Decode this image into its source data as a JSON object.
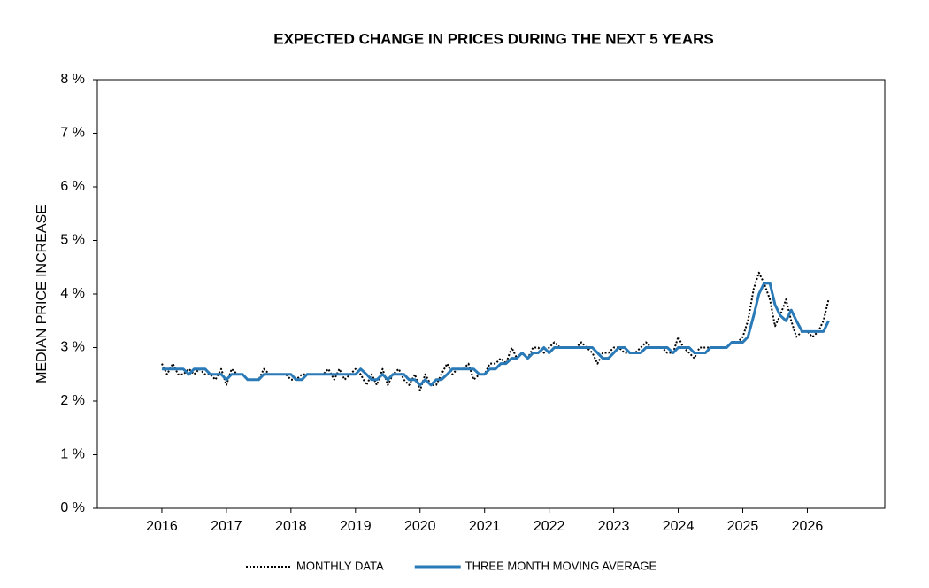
{
  "chart_data": {
    "type": "line",
    "title": "EXPECTED CHANGE IN PRICES DURING THE NEXT 5 YEARS",
    "y_label": "MEDIAN PRICE INCREASE",
    "x": [
      2016.0,
      2016.08,
      2016.17,
      2016.25,
      2016.33,
      2016.42,
      2016.5,
      2016.58,
      2016.67,
      2016.75,
      2016.83,
      2016.92,
      2017.0,
      2017.08,
      2017.17,
      2017.25,
      2017.33,
      2017.42,
      2017.5,
      2017.58,
      2017.67,
      2017.75,
      2017.83,
      2017.92,
      2018.0,
      2018.08,
      2018.17,
      2018.25,
      2018.33,
      2018.42,
      2018.5,
      2018.58,
      2018.67,
      2018.75,
      2018.83,
      2018.92,
      2019.0,
      2019.08,
      2019.17,
      2019.25,
      2019.33,
      2019.42,
      2019.5,
      2019.58,
      2019.67,
      2019.75,
      2019.83,
      2019.92,
      2020.0,
      2020.08,
      2020.17,
      2020.25,
      2020.33,
      2020.42,
      2020.5,
      2020.58,
      2020.67,
      2020.75,
      2020.83,
      2020.92,
      2021.0,
      2021.08,
      2021.17,
      2021.25,
      2021.33,
      2021.42,
      2021.5,
      2021.58,
      2021.67,
      2021.75,
      2021.83,
      2021.92,
      2022.0,
      2022.08,
      2022.17,
      2022.25,
      2022.33,
      2022.42,
      2022.5,
      2022.58,
      2022.67,
      2022.75,
      2022.83,
      2022.92,
      2023.0,
      2023.08,
      2023.17,
      2023.25,
      2023.33,
      2023.42,
      2023.5,
      2023.58,
      2023.67,
      2023.75,
      2023.83,
      2023.92,
      2024.0,
      2024.08,
      2024.17,
      2024.25,
      2024.33,
      2024.42,
      2024.5,
      2024.58,
      2024.67,
      2024.75,
      2024.83,
      2024.92,
      2025.0,
      2025.08,
      2025.17,
      2025.25,
      2025.33,
      2025.42,
      2025.5,
      2025.58,
      2025.67,
      2025.75,
      2025.83,
      2025.92,
      2026.0,
      2026.08,
      2026.17,
      2026.25,
      2026.33
    ],
    "series": [
      {
        "name": "MONTHLY DATA",
        "color": "#000000",
        "line_style": "dotted",
        "values": [
          2.7,
          2.5,
          2.7,
          2.5,
          2.5,
          2.6,
          2.5,
          2.6,
          2.5,
          2.5,
          2.4,
          2.6,
          2.3,
          2.6,
          2.5,
          2.5,
          2.4,
          2.4,
          2.4,
          2.6,
          2.5,
          2.5,
          2.5,
          2.5,
          2.4,
          2.4,
          2.5,
          2.5,
          2.5,
          2.5,
          2.5,
          2.6,
          2.4,
          2.6,
          2.4,
          2.5,
          2.6,
          2.5,
          2.3,
          2.5,
          2.3,
          2.6,
          2.3,
          2.5,
          2.6,
          2.4,
          2.3,
          2.5,
          2.2,
          2.5,
          2.3,
          2.3,
          2.5,
          2.7,
          2.5,
          2.6,
          2.6,
          2.7,
          2.4,
          2.5,
          2.5,
          2.7,
          2.7,
          2.8,
          2.7,
          3.0,
          2.8,
          2.9,
          2.8,
          3.0,
          3.0,
          2.9,
          3.0,
          3.1,
          3.0,
          3.0,
          3.0,
          3.0,
          3.1,
          3.0,
          2.9,
          2.7,
          2.9,
          2.9,
          3.0,
          3.0,
          2.9,
          2.9,
          2.9,
          3.0,
          3.1,
          3.0,
          3.0,
          3.0,
          2.9,
          2.9,
          3.2,
          3.0,
          2.9,
          2.8,
          3.0,
          3.0,
          3.0,
          3.0,
          3.0,
          3.0,
          3.1,
          3.1,
          3.2,
          3.5,
          4.1,
          4.4,
          4.2,
          3.9,
          3.4,
          3.6,
          3.9,
          3.5,
          3.2,
          3.3,
          3.3,
          3.2,
          3.3,
          3.5,
          3.9
        ]
      },
      {
        "name": "THREE MONTH MOVING AVERAGE",
        "color": "#2a7ab8",
        "line_style": "solid",
        "values": [
          2.6,
          2.6,
          2.6,
          2.6,
          2.6,
          2.5,
          2.6,
          2.6,
          2.6,
          2.5,
          2.5,
          2.5,
          2.4,
          2.5,
          2.5,
          2.5,
          2.4,
          2.4,
          2.4,
          2.5,
          2.5,
          2.5,
          2.5,
          2.5,
          2.5,
          2.4,
          2.4,
          2.5,
          2.5,
          2.5,
          2.5,
          2.5,
          2.5,
          2.5,
          2.5,
          2.5,
          2.5,
          2.6,
          2.5,
          2.4,
          2.4,
          2.5,
          2.4,
          2.5,
          2.5,
          2.5,
          2.4,
          2.4,
          2.3,
          2.4,
          2.3,
          2.4,
          2.4,
          2.5,
          2.6,
          2.6,
          2.6,
          2.6,
          2.6,
          2.5,
          2.5,
          2.6,
          2.6,
          2.7,
          2.7,
          2.8,
          2.8,
          2.9,
          2.8,
          2.9,
          2.9,
          3.0,
          2.9,
          3.0,
          3.0,
          3.0,
          3.0,
          3.0,
          3.0,
          3.0,
          3.0,
          2.9,
          2.8,
          2.8,
          2.9,
          3.0,
          3.0,
          2.9,
          2.9,
          2.9,
          3.0,
          3.0,
          3.0,
          3.0,
          3.0,
          2.9,
          3.0,
          3.0,
          3.0,
          2.9,
          2.9,
          2.9,
          3.0,
          3.0,
          3.0,
          3.0,
          3.1,
          3.1,
          3.1,
          3.2,
          3.6,
          4.0,
          4.2,
          4.2,
          3.8,
          3.6,
          3.5,
          3.7,
          3.5,
          3.3,
          3.3,
          3.3,
          3.3,
          3.3,
          3.5
        ]
      }
    ],
    "xlim": [
      2015,
      2027.2
    ],
    "xticks": [
      2016,
      2017,
      2018,
      2019,
      2020,
      2021,
      2022,
      2023,
      2024,
      2025,
      2026
    ],
    "ylim": [
      0,
      8
    ],
    "yticks": [
      {
        "value": 0,
        "label": "0 %"
      },
      {
        "value": 1,
        "label": "1 %"
      },
      {
        "value": 2,
        "label": "2 %"
      },
      {
        "value": 3,
        "label": "3 %"
      },
      {
        "value": 4,
        "label": "4 %"
      },
      {
        "value": 5,
        "label": "5 %"
      },
      {
        "value": 6,
        "label": "6 %"
      },
      {
        "value": 7,
        "label": "7 %"
      },
      {
        "value": 8,
        "label": "8 %"
      }
    ],
    "grid": false,
    "legend": "bottom"
  }
}
